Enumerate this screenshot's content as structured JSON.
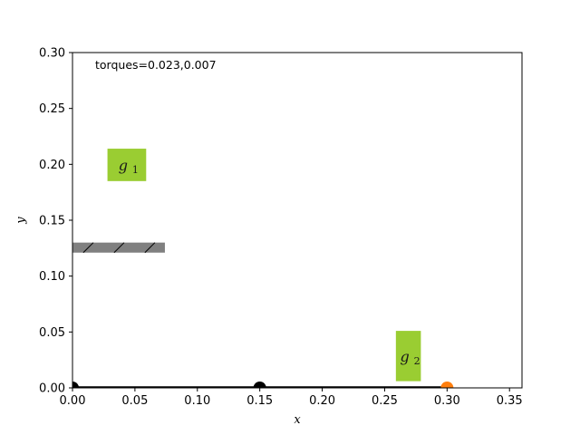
{
  "chart_data": {
    "type": "scatter",
    "title": "",
    "xlabel": "x",
    "ylabel": "y",
    "xlim": [
      0,
      0.36
    ],
    "ylim": [
      0,
      0.3
    ],
    "xticks": [
      "0.00",
      "0.05",
      "0.10",
      "0.15",
      "0.20",
      "0.25",
      "0.30",
      "0.35"
    ],
    "yticks": [
      "0.00",
      "0.05",
      "0.10",
      "0.15",
      "0.20",
      "0.25",
      "0.30"
    ],
    "annotation": "torques=0.023,0.007",
    "obstacle": {
      "x": [
        0,
        0.074
      ],
      "y": [
        0.121,
        0.13
      ],
      "hatch": true,
      "color": "#808080"
    },
    "goals": [
      {
        "label": "g",
        "sub": "1",
        "x": [
          0.028,
          0.059
        ],
        "y": [
          0.185,
          0.214
        ],
        "color": "#9ACD32"
      },
      {
        "label": "g",
        "sub": "2",
        "x": [
          0.259,
          0.279
        ],
        "y": [
          0.006,
          0.051
        ],
        "color": "#9ACD32"
      }
    ],
    "arm": {
      "links": [
        {
          "x": [
            0.0,
            0.15
          ],
          "y": [
            0.0,
            0.0
          ]
        },
        {
          "x": [
            0.15,
            0.3
          ],
          "y": [
            0.0,
            0.0
          ]
        }
      ],
      "joints": [
        {
          "x": 0.0,
          "y": 0.0,
          "color": "#000000"
        },
        {
          "x": 0.15,
          "y": 0.0,
          "color": "#000000"
        }
      ],
      "end_effector": {
        "x": 0.3,
        "y": 0.0,
        "color": "#ff7f0e"
      },
      "link_color": "#000000"
    },
    "grid": false,
    "legend": "none"
  }
}
